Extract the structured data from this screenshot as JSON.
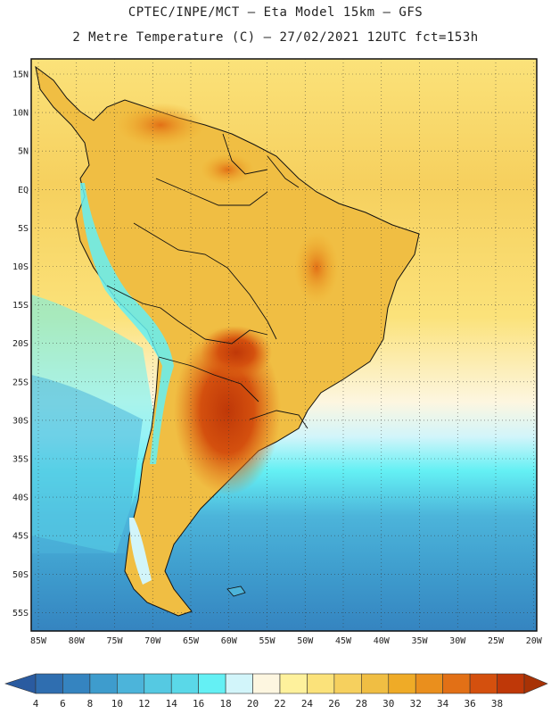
{
  "header": {
    "line1": "CPTEC/INPE/MCT –  Eta Model 15km – GFS",
    "line2": "2 Metre Temperature (C) – 27/02/2021 12UTC fct=153h"
  },
  "axes": {
    "lat_labels": [
      "15N",
      "10N",
      "5N",
      "EQ",
      "5S",
      "10S",
      "15S",
      "20S",
      "25S",
      "30S",
      "35S",
      "40S",
      "45S",
      "50S",
      "55S"
    ],
    "lon_labels": [
      "85W",
      "80W",
      "75W",
      "70W",
      "65W",
      "60W",
      "55W",
      "50W",
      "45W",
      "40W",
      "35W",
      "30W",
      "25W",
      "20W"
    ]
  },
  "colorbar": {
    "labels": [
      "4",
      "6",
      "8",
      "10",
      "12",
      "14",
      "16",
      "18",
      "20",
      "22",
      "24",
      "26",
      "28",
      "30",
      "32",
      "34",
      "36",
      "38"
    ],
    "colors": [
      "#2f6eb0",
      "#3584c0",
      "#3e9ccd",
      "#4cb4da",
      "#55c9e2",
      "#5ad8e8",
      "#64f0f4",
      "#d2f5fa",
      "#fdf6e0",
      "#fef19c",
      "#fbe27a",
      "#f6d05e",
      "#f0be43",
      "#efab27",
      "#ea8f1d",
      "#e27016",
      "#d4500e",
      "#bf3808"
    ],
    "under_color": "#2a5ba0",
    "over_color": "#a83205"
  },
  "map": {
    "extent_lon": [
      -86,
      -19
    ],
    "extent_lat": [
      17,
      -58
    ],
    "ocean_band_colors": [
      "#fbe27a",
      "#fef19c",
      "#fdf6e0",
      "#d2f5fa",
      "#64f0f4",
      "#4cb4da",
      "#3e9ccd",
      "#3584c0"
    ],
    "land_color": "#f0be43"
  }
}
